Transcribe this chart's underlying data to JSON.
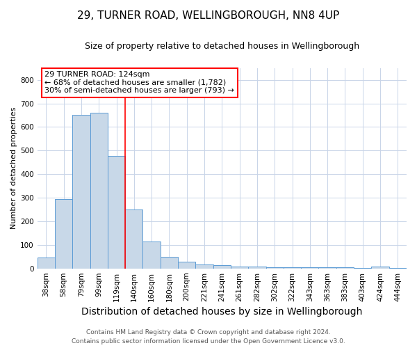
{
  "title": "29, TURNER ROAD, WELLINGBOROUGH, NN8 4UP",
  "subtitle": "Size of property relative to detached houses in Wellingborough",
  "xlabel": "Distribution of detached houses by size in Wellingborough",
  "ylabel": "Number of detached properties",
  "categories": [
    "38sqm",
    "58sqm",
    "79sqm",
    "99sqm",
    "119sqm",
    "140sqm",
    "160sqm",
    "180sqm",
    "200sqm",
    "221sqm",
    "241sqm",
    "261sqm",
    "282sqm",
    "302sqm",
    "322sqm",
    "343sqm",
    "363sqm",
    "383sqm",
    "403sqm",
    "424sqm",
    "444sqm"
  ],
  "values": [
    46,
    293,
    651,
    660,
    478,
    250,
    115,
    50,
    28,
    18,
    14,
    8,
    7,
    6,
    5,
    5,
    5,
    4,
    1,
    8,
    1
  ],
  "bar_color": "#c8d8e8",
  "bar_edge_color": "#5b9bd5",
  "red_line_x": 4.5,
  "annotation_line1": "29 TURNER ROAD: 124sqm",
  "annotation_line2": "← 68% of detached houses are smaller (1,782)",
  "annotation_line3": "30% of semi-detached houses are larger (793) →",
  "annotation_box_color": "white",
  "annotation_box_edge_color": "red",
  "red_line_color": "red",
  "footer_line1": "Contains HM Land Registry data © Crown copyright and database right 2024.",
  "footer_line2": "Contains public sector information licensed under the Open Government Licence v3.0.",
  "ylim": [
    0,
    850
  ],
  "yticks": [
    0,
    100,
    200,
    300,
    400,
    500,
    600,
    700,
    800
  ],
  "title_fontsize": 11,
  "subtitle_fontsize": 9,
  "xlabel_fontsize": 10,
  "ylabel_fontsize": 8,
  "tick_fontsize": 7.5,
  "annotation_fontsize": 8,
  "footer_fontsize": 6.5,
  "background_color": "white",
  "grid_color": "#c8d4e8"
}
